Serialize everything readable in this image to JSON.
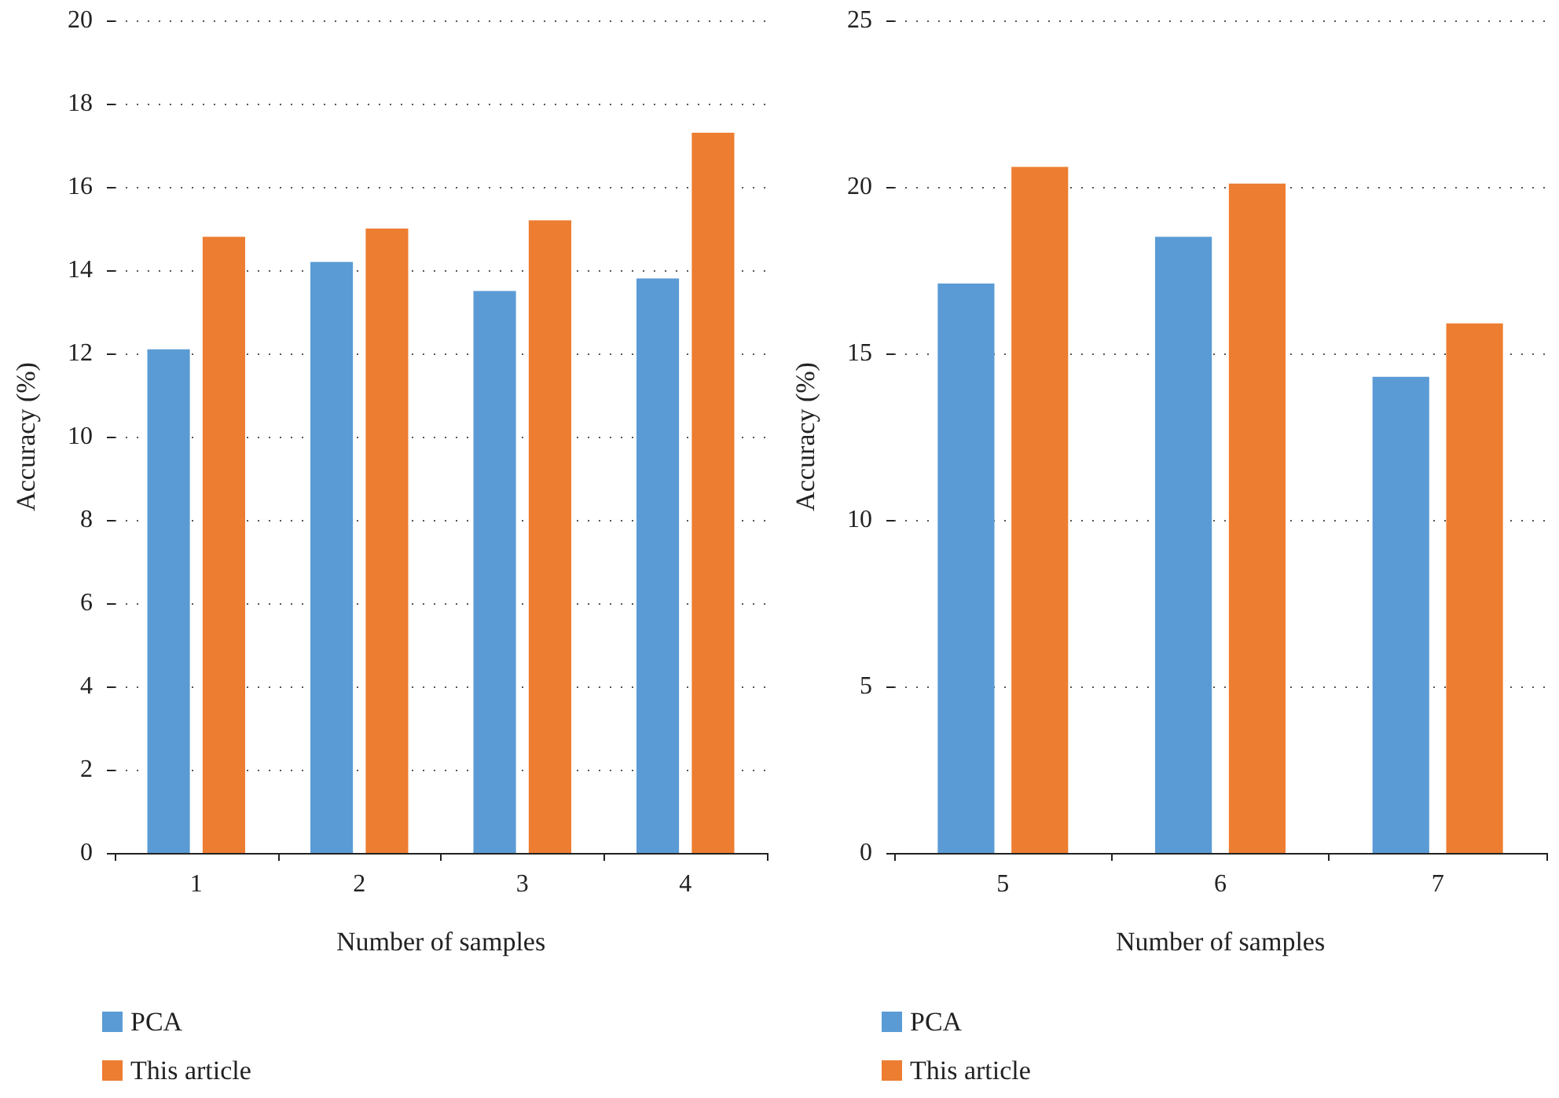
{
  "chart_data": [
    {
      "type": "bar",
      "categories": [
        "1",
        "2",
        "3",
        "4"
      ],
      "xlabel": "Number of samples",
      "ylabel": "Accuracy (%)",
      "ylim": [
        0,
        20
      ],
      "yticks": [
        0,
        2,
        4,
        6,
        8,
        10,
        12,
        14,
        16,
        18,
        20
      ],
      "grid": "y",
      "legend": "bottom left",
      "series": [
        {
          "name": "PCA",
          "color": "#5b9bd5",
          "values": [
            12.1,
            14.2,
            13.5,
            13.8
          ]
        },
        {
          "name": "This article",
          "color": "#ed7d31",
          "values": [
            14.8,
            15.0,
            15.2,
            17.3
          ]
        }
      ]
    },
    {
      "type": "bar",
      "categories": [
        "5",
        "6",
        "7"
      ],
      "xlabel": "Number of samples",
      "ylabel": "Accuracy (%)",
      "ylim": [
        0,
        25
      ],
      "yticks": [
        0,
        5,
        10,
        15,
        20,
        25
      ],
      "grid": "y",
      "legend": "bottom left",
      "series": [
        {
          "name": "PCA",
          "color": "#5b9bd5",
          "values": [
            17.1,
            18.5,
            14.3
          ]
        },
        {
          "name": "This article",
          "color": "#ed7d31",
          "values": [
            20.6,
            20.1,
            15.9
          ]
        }
      ]
    }
  ]
}
